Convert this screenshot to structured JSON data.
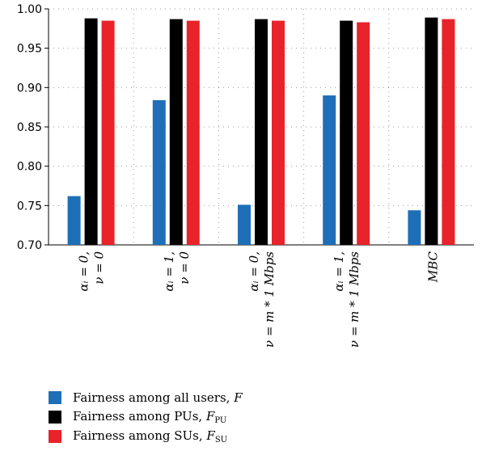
{
  "chart_data": {
    "type": "bar",
    "categories": [
      {
        "line1": "αᵢ = 0,",
        "line2": "ν = 0"
      },
      {
        "line1": "αᵢ = 1,",
        "line2": "ν = 0"
      },
      {
        "line1": "αᵢ = 0,",
        "line2": "ν = m * 1 Mbps"
      },
      {
        "line1": "αᵢ = 1,",
        "line2": "ν = m * 1 Mbps"
      },
      {
        "line1": "MBC",
        "line2": ""
      }
    ],
    "series": [
      {
        "name": "Fairness among all users, F",
        "color": "#1f6fb8",
        "values": [
          0.762,
          0.884,
          0.751,
          0.89,
          0.744
        ]
      },
      {
        "name": "Fairness among PUs, F_PU",
        "color": "#000000",
        "values": [
          0.988,
          0.987,
          0.987,
          0.985,
          0.989
        ]
      },
      {
        "name": "Fairness among SUs, F_SU",
        "color": "#e8232a",
        "values": [
          0.985,
          0.985,
          0.985,
          0.983,
          0.987
        ]
      }
    ],
    "yticks": [
      "0.70",
      "0.75",
      "0.80",
      "0.85",
      "0.90",
      "0.95",
      "1.00"
    ],
    "ylim": [
      0.7,
      1.0
    ],
    "grid": "dotted",
    "legend_position": "bottom-left"
  },
  "legend": [
    {
      "text": "Fairness among all users, ",
      "sym": "F",
      "sub": "",
      "color": "#1f6fb8"
    },
    {
      "text": "Fairness among PUs, ",
      "sym": "F",
      "sub": "PU",
      "color": "#000000"
    },
    {
      "text": "Fairness among SUs, ",
      "sym": "F",
      "sub": "SU",
      "color": "#e8232a"
    }
  ]
}
